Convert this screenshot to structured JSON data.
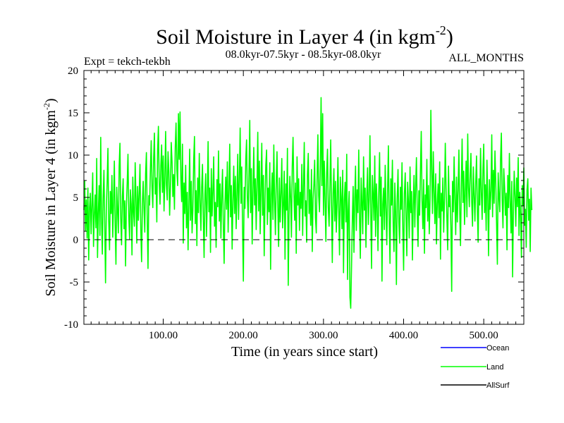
{
  "chart_data": {
    "type": "line",
    "title": "Soil Moisture in Layer 4 (in kgm",
    "title_sup": "-2",
    "title_tail": ")",
    "ylabel": "Soil Moisture in Layer 4 (in kgm",
    "ylabel_sup": "-2",
    "ylabel_tail": ")",
    "xlabel": "Time (in years since start)",
    "annotations": {
      "left": "Expt = tekch-tekbh",
      "center": "08.0kyr-07.5kyr - 08.5kyr-08.0kyr",
      "right": "ALL_MONTHS"
    },
    "xlim": [
      1,
      550
    ],
    "ylim": [
      -10,
      20
    ],
    "x_ticks": [
      100,
      200,
      300,
      400,
      500
    ],
    "x_tick_labels": [
      "100.00",
      "200.00",
      "300.00",
      "400.00",
      "500.00"
    ],
    "y_ticks": [
      -10,
      -5,
      0,
      5,
      10,
      15,
      20
    ],
    "y_tick_labels": [
      "-10",
      "-5",
      "0",
      "5",
      "10",
      "15",
      "20"
    ],
    "zero_line": 0,
    "legend": [
      {
        "name": "Ocean",
        "color": "#0000ff"
      },
      {
        "name": "Land",
        "color": "#00ff00"
      },
      {
        "name": "AllSurf",
        "color": "#000000"
      }
    ],
    "series": [
      {
        "name": "Land",
        "color": "#00ff00",
        "x_start": 1,
        "x_step": 1,
        "values": [
          3.5,
          6.9,
          1.1,
          4.7,
          0.2,
          6.1,
          -2.4,
          3.8,
          5.5,
          0.7,
          4.1,
          7.9,
          -0.8,
          2.9,
          5.3,
          1.4,
          9.6,
          -2.1,
          3.2,
          6.4,
          0.5,
          12.1,
          2.6,
          -1.7,
          4.9,
          8.2,
          1.9,
          -5.1,
          3.7,
          6.8,
          10.8,
          2.2,
          -1.2,
          5.7,
          3.1,
          7.6,
          0.3,
          4.4,
          9.3,
          1.7,
          -2.9,
          6.2,
          3.4,
          0.8,
          8.7,
          11.4,
          2.5,
          -0.6,
          5.1,
          7.2,
          1.3,
          4.6,
          -3.1,
          3.9,
          6.6,
          10.1,
          2.8,
          0.1,
          5.9,
          4.2,
          -1.8,
          7.4,
          3.3,
          1.6,
          9.1,
          4.8,
          -0.4,
          6.3,
          2.3,
          5.4,
          8.9,
          1.2,
          -2.6,
          4.3,
          6.9,
          3.6,
          0.9,
          7.8,
          10.3,
          2.7,
          -3.4,
          5.2,
          4.1,
          8.4,
          11.7,
          6.2,
          3.8,
          9.5,
          12.6,
          5.4,
          7.3,
          2.1,
          10.6,
          13.4,
          6.8,
          4.2,
          8.7,
          11.2,
          5.6,
          9.9,
          3.4,
          7.1,
          12.8,
          6.5,
          4.7,
          10.4,
          8.1,
          2.9,
          6.3,
          11.5,
          9.2,
          5.1,
          7.7,
          3.6,
          10.9,
          13.8,
          8.3,
          6.4,
          14.9,
          9.5,
          15.1,
          7.2,
          4.5,
          11.3,
          -0.4,
          6.7,
          3.1,
          8.8,
          1.4,
          5.6,
          -1.2,
          4.2,
          10.7,
          2.3,
          6.9,
          0.8,
          3.5,
          9.4,
          12.2,
          1.9,
          5.8,
          -0.7,
          7.3,
          3.2,
          10.2,
          4.6,
          1.1,
          6.2,
          8.9,
          2.5,
          -2.1,
          5.3,
          7.8,
          0.4,
          4.9,
          11.6,
          3.3,
          6.1,
          -1.5,
          8.4,
          2.8,
          5.7,
          9.8,
          1.6,
          4.4,
          -0.9,
          7.1,
          3.9,
          10.5,
          2.2,
          6.6,
          0.2,
          5.2,
          8.3,
          1.8,
          -2.8,
          4.1,
          7.4,
          3.6,
          9.2,
          0.9,
          5.8,
          11.3,
          2.7,
          6.4,
          -1.1,
          4.6,
          8.7,
          3.1,
          7.5,
          1.3,
          5.4,
          10.1,
          2.4,
          6.9,
          13.2,
          4.3,
          8.6,
          1.5,
          -4.9,
          6.2,
          3.7,
          9.5,
          11.8,
          5.1,
          2.6,
          7.8,
          14.1,
          3.2,
          8.4,
          -0.5,
          5.6,
          10.9,
          4.1,
          7.2,
          1.2,
          6.5,
          12.7,
          3.4,
          9.3,
          0.7,
          5.9,
          11.4,
          2.9,
          7.6,
          -1.9,
          4.4,
          8.8,
          10.6,
          1.8,
          6.1,
          3.3,
          9.1,
          -3.5,
          5.3,
          7.9,
          2.4,
          11.2,
          4.7,
          0.6,
          6.8,
          10.4,
          3.9,
          -0.8,
          7.3,
          2.1,
          5.5,
          9.6,
          1.4,
          4.2,
          8.1,
          -2.3,
          6.6,
          3.5,
          10.8,
          -5.4,
          2.7,
          7.5,
          4.9,
          0.3,
          8.6,
          12.1,
          5.8,
          2.3,
          6.7,
          -1.6,
          9.8,
          4.1,
          7.2,
          1.1,
          5.6,
          3.7,
          8.9,
          0.5,
          6.3,
          11.5,
          2.8,
          4.6,
          -0.3,
          7.7,
          10.2,
          3.1,
          5.9,
          1.7,
          8.3,
          -1.4,
          4.8,
          6.5,
          9.4,
          2.6,
          0.8,
          7.1,
          12.4,
          5.2,
          3.3,
          8.6,
          16.8,
          6.4,
          14.9,
          2.9,
          9.3,
          4.5,
          -0.2,
          7.9,
          10.7,
          3.8,
          1.6,
          6.2,
          11.8,
          4.1,
          -2.7,
          5.5,
          8.4,
          2.2,
          6.9,
          0.9,
          4.3,
          9.7,
          3.6,
          -1.8,
          7.4,
          5.1,
          1.3,
          8.2,
          -3.9,
          4.6,
          6.8,
          2.1,
          10.1,
          -4.7,
          3.4,
          5.7,
          -6.8,
          -8.1,
          -3.2,
          2.4,
          6.3,
          -1.5,
          4.8,
          8.7,
          1.1,
          5.9,
          3.2,
          10.6,
          2.6,
          -2.2,
          7.3,
          4.4,
          0.7,
          9.8,
          3.5,
          6.1,
          -0.9,
          5.2,
          8.5,
          1.8,
          4.7,
          12.3,
          3.1,
          -3.4,
          7.6,
          5.4,
          2.3,
          9.9,
          0.4,
          6.6,
          3.8,
          -1.3,
          5.6,
          10.3,
          2.8,
          7.4,
          -4.9,
          4.2,
          6.1,
          1.2,
          8.8,
          3.7,
          -0.6,
          5.9,
          11.1,
          2.4,
          -2.8,
          7.2,
          4.1,
          9.4,
          1.6,
          -1.4,
          6.7,
          3.3,
          -5.3,
          4.9,
          8.3,
          2.1,
          -0.4,
          6.2,
          3.6,
          9.1,
          1.4,
          -3.6,
          5.4,
          7.9,
          2.7,
          -1.9,
          6.8,
          4.5,
          0.2,
          8.6,
          3.2,
          5.7,
          -2.4,
          4.1,
          7.6,
          1.5,
          6.3,
          9.7,
          3.4,
          -0.8,
          5.8,
          2.9,
          8.2,
          12.8,
          4.6,
          1.3,
          7.1,
          -1.6,
          5.3,
          3.8,
          9.5,
          2.2,
          6.4,
          0.7,
          4.9,
          15.3,
          8.3,
          3.1,
          10.4,
          5.7,
          1.9,
          7.8,
          -0.5,
          4.2,
          6.6,
          2.6,
          9.2,
          -2.3,
          5.5,
          3.4,
          7.3,
          0.9,
          4.8,
          11.4,
          6.1,
          2.5,
          -1.2,
          8.7,
          3.9,
          5.2,
          1.4,
          -6.1,
          6.9,
          3.3,
          9.8,
          4.7,
          0.6,
          7.4,
          2.1,
          5.8,
          10.6,
          3.5,
          -0.7,
          6.3,
          11.9,
          4.4,
          8.1,
          1.8,
          5.6,
          9.3,
          2.7,
          12.5,
          6.2,
          3.9,
          7.7,
          10.2,
          4.5,
          1.6,
          8.6,
          5.3,
          2.2,
          6.8,
          9.9,
          3.7,
          -0.3,
          7.2,
          4.1,
          10.8,
          5.6,
          2.4,
          8.3,
          11.3,
          3.2,
          6.5,
          1.1,
          9.4,
          4.9,
          -1.9,
          7.1,
          3.6,
          5.8,
          12.4,
          2.7,
          8.2,
          4.3,
          10.5,
          6.7,
          1.9,
          -2.9,
          7.9,
          5.1,
          3.3,
          9.6,
          12.6,
          4.7,
          1.4,
          8.4,
          6.2,
          2.9,
          5.5,
          -1.2,
          7.6,
          3.8,
          10.2,
          4.6,
          0.8,
          6.9,
          -4.4,
          3.4,
          8.1,
          5.2,
          1.6,
          7.3,
          3.9,
          9.7,
          0.5,
          5.6,
          2.8,
          -2.1,
          6.4,
          4.1,
          8.5,
          1.7,
          3.6,
          -0.9,
          5.9,
          7.2,
          2.3,
          4.8,
          -1.4,
          6.1,
          3.5
        ]
      }
    ]
  }
}
